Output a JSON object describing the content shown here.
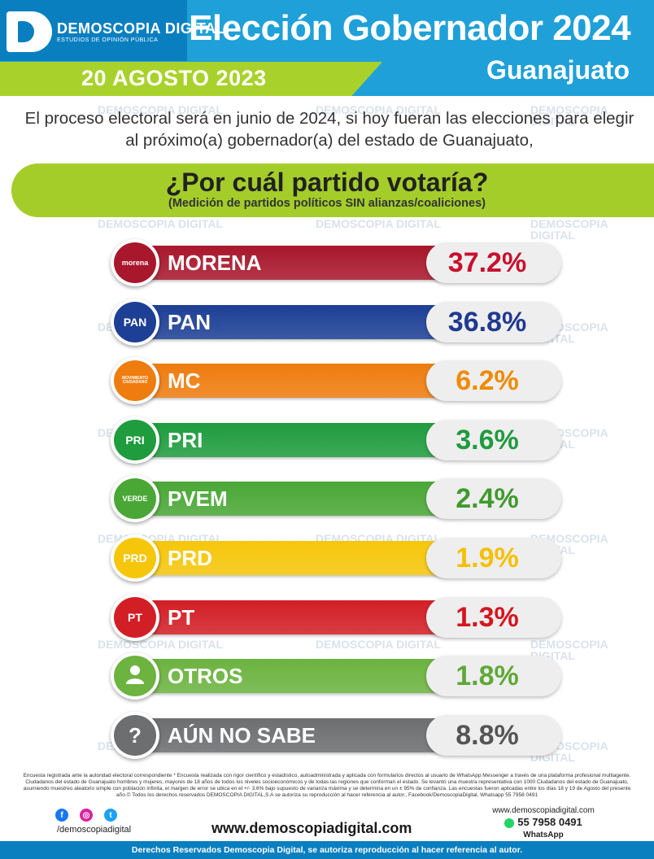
{
  "brand": {
    "name": "DEMOSCOPIA DIGITAL",
    "tagline": "ESTUDIOS DE OPINIÓN PÚBLICA",
    "color": "#0a7fc0"
  },
  "header": {
    "title": "Elección Gobernador 2024",
    "state": "Guanajuato",
    "date": "20 AGOSTO 2023"
  },
  "intro": "El proceso electoral será en junio de 2024, si hoy fueran las elecciones para elegir al próximo(a) gobernador(a) del estado de Guanajuato,",
  "question": {
    "title": "¿Por cuál partido votaría?",
    "subtitle": "(Medición de partidos políticos SIN alianzas/coaliciones)"
  },
  "chart_data": {
    "type": "bar",
    "orientation": "horizontal",
    "categories": [
      "MORENA",
      "PAN",
      "MC",
      "PRI",
      "PVEM",
      "PRD",
      "PT",
      "OTROS",
      "AÚN NO SABE"
    ],
    "values": [
      37.2,
      36.8,
      6.2,
      3.6,
      2.4,
      1.9,
      1.3,
      1.8,
      8.8
    ],
    "value_labels": [
      "37.2%",
      "36.8%",
      "6.2%",
      "3.6%",
      "2.4%",
      "1.9%",
      "1.3%",
      "1.8%",
      "8.8%"
    ],
    "bar_colors": [
      "#a8172b",
      "#1d3f95",
      "#ee7c0e",
      "#1f9c3e",
      "#4aa736",
      "#f5c60a",
      "#d21f26",
      "#6cb33f",
      "#6d6e70"
    ],
    "label_colors": [
      "#c8102e",
      "#1f3a8f",
      "#f08a00",
      "#219a3e",
      "#3f9a2e",
      "#f5c000",
      "#d4161e",
      "#5fa838",
      "#555555"
    ],
    "icons": [
      "morena-logo",
      "pan-logo",
      "mc-logo",
      "pri-logo",
      "pvem-logo",
      "prd-logo",
      "pt-logo",
      "person-icon",
      "question-icon"
    ],
    "badge_text": [
      "morena",
      "PAN",
      "MOVIMIENTO CIUDADANO",
      "PRI",
      "VERDE",
      "PRD",
      "PT",
      "",
      "?"
    ],
    "title": "¿Por cuál partido votaría?"
  },
  "footer": {
    "notes": "Encuesta registrada ante la autoridad electoral correspondiente * Encuesta realizada con rigor científico y estadístico, autoadministrada y aplicada con formularios directos al usuario de WhatsApp Messenger a través de una plataforma profesional multiagente. Ciudadanos del estado de Guanajuato hombres y mujeres, mayores de 18 años de todos los niveles socioeconómicos y de todas las regiones que conforman el estado. Se levantó una muestra representativa con 1000 Ciudadanos del estado de Guanajuato, asumiendo muestreo aleatorio simple con población infinita, el margen de error se ubica en el +/- 3.6% bajo supuesto de varianza máxima y se determina en un ± 95% de confianza. Las encuestas fueron aplicadas entre los días 18 y 19 de Agosto del presente año.© Todos los derechos reservados DEMOSCOPIA DIGITAL,S.A se autoriza su reproducción al hacer referencia al autor., Facebook/DemoscopiaDigital, Whatsapp 55 7958 0491",
    "social_handle": "/demoscopiadigital",
    "website": "www.demoscopiadigital.com",
    "contact_website": "www.demoscopiadigital.com",
    "phone": "55 7958 0491",
    "whatsapp_label": "WhatsApp",
    "rights": "Derechos Reservados Demoscopia Digital, se autoriza reproducción al hacer referencia al autor."
  }
}
